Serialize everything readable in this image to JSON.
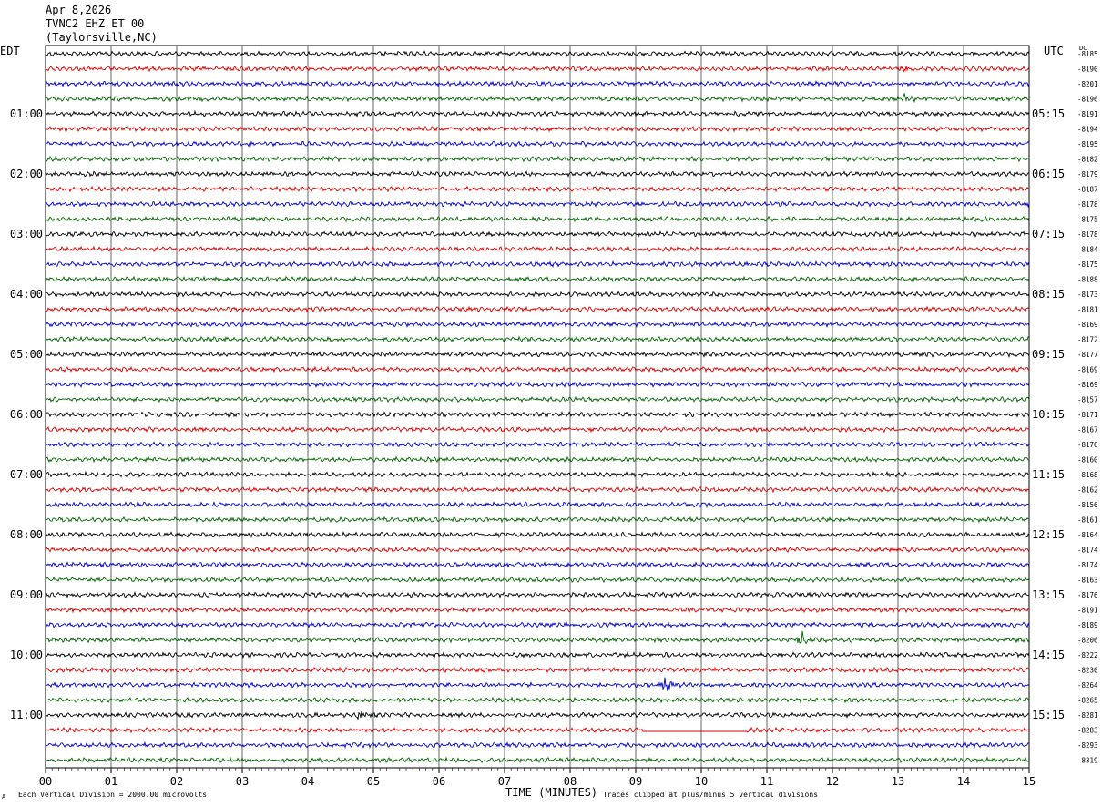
{
  "header": {
    "date": "Apr 8,2026",
    "station": "TVNC2 EHZ ET 00",
    "location": "(Taylorsville,NC)"
  },
  "timezones": {
    "left": "EDT",
    "right": "UTC",
    "dc": "DC"
  },
  "footer": {
    "scale_note": "Each Vertical Division = 2000.00 microvolts",
    "clip_note": "Traces clipped at plus/minus 5 vertical divisions",
    "xlabel": "TIME (MINUTES)",
    "corner_mark": "A"
  },
  "chart_data": {
    "type": "line",
    "title": "",
    "xlabel": "TIME (MINUTES)",
    "xlim": [
      0,
      15
    ],
    "x_ticks": [
      "00",
      "01",
      "02",
      "03",
      "04",
      "05",
      "06",
      "07",
      "08",
      "09",
      "10",
      "11",
      "12",
      "13",
      "14",
      "15"
    ],
    "trace_colors": [
      "#000000",
      "#dd0000",
      "#0000cc",
      "#006600"
    ],
    "left_hour_labels": [
      "01:00",
      "02:00",
      "03:00",
      "04:00",
      "05:00",
      "06:00",
      "07:00",
      "08:00",
      "09:00",
      "10:00",
      "11:00"
    ],
    "right_hour_labels": [
      "05:15",
      "06:15",
      "07:15",
      "08:15",
      "09:15",
      "10:15",
      "11:15",
      "12:15",
      "13:15",
      "14:15",
      "15:15"
    ],
    "dc_offsets": [
      "-8185",
      "-8190",
      "-8201",
      "-8196",
      "-8191",
      "-8194",
      "-8195",
      "-8182",
      "-8179",
      "-8187",
      "-8178",
      "-8175",
      "-8178",
      "-8184",
      "-8175",
      "-8188",
      "-8173",
      "-8181",
      "-8169",
      "-8172",
      "-8177",
      "-8169",
      "-8169",
      "-8157",
      "-8171",
      "-8167",
      "-8176",
      "-8160",
      "-8168",
      "-8162",
      "-8156",
      "-8161",
      "-8164",
      "-8174",
      "-8174",
      "-8163",
      "-8176",
      "-8191",
      "-8189",
      "-8206",
      "-8222",
      "-8230",
      "-8264",
      "-8265",
      "-8281",
      "-8283",
      "-8293",
      "-8319"
    ],
    "events": [
      {
        "trace": 39,
        "minute": 11.55,
        "amplitude": 9
      },
      {
        "trace": 42,
        "minute": 9.45,
        "amplitude": 9
      },
      {
        "trace": 44,
        "minute": 4.8,
        "amplitude": 5
      },
      {
        "trace": 1,
        "minute": 13.1,
        "amplitude": 5
      },
      {
        "trace": 3,
        "minute": 13.1,
        "amplitude": 5
      }
    ],
    "flat_segments": [
      {
        "trace": 45,
        "from_minute": 9.1,
        "to_minute": 10.7
      }
    ]
  }
}
